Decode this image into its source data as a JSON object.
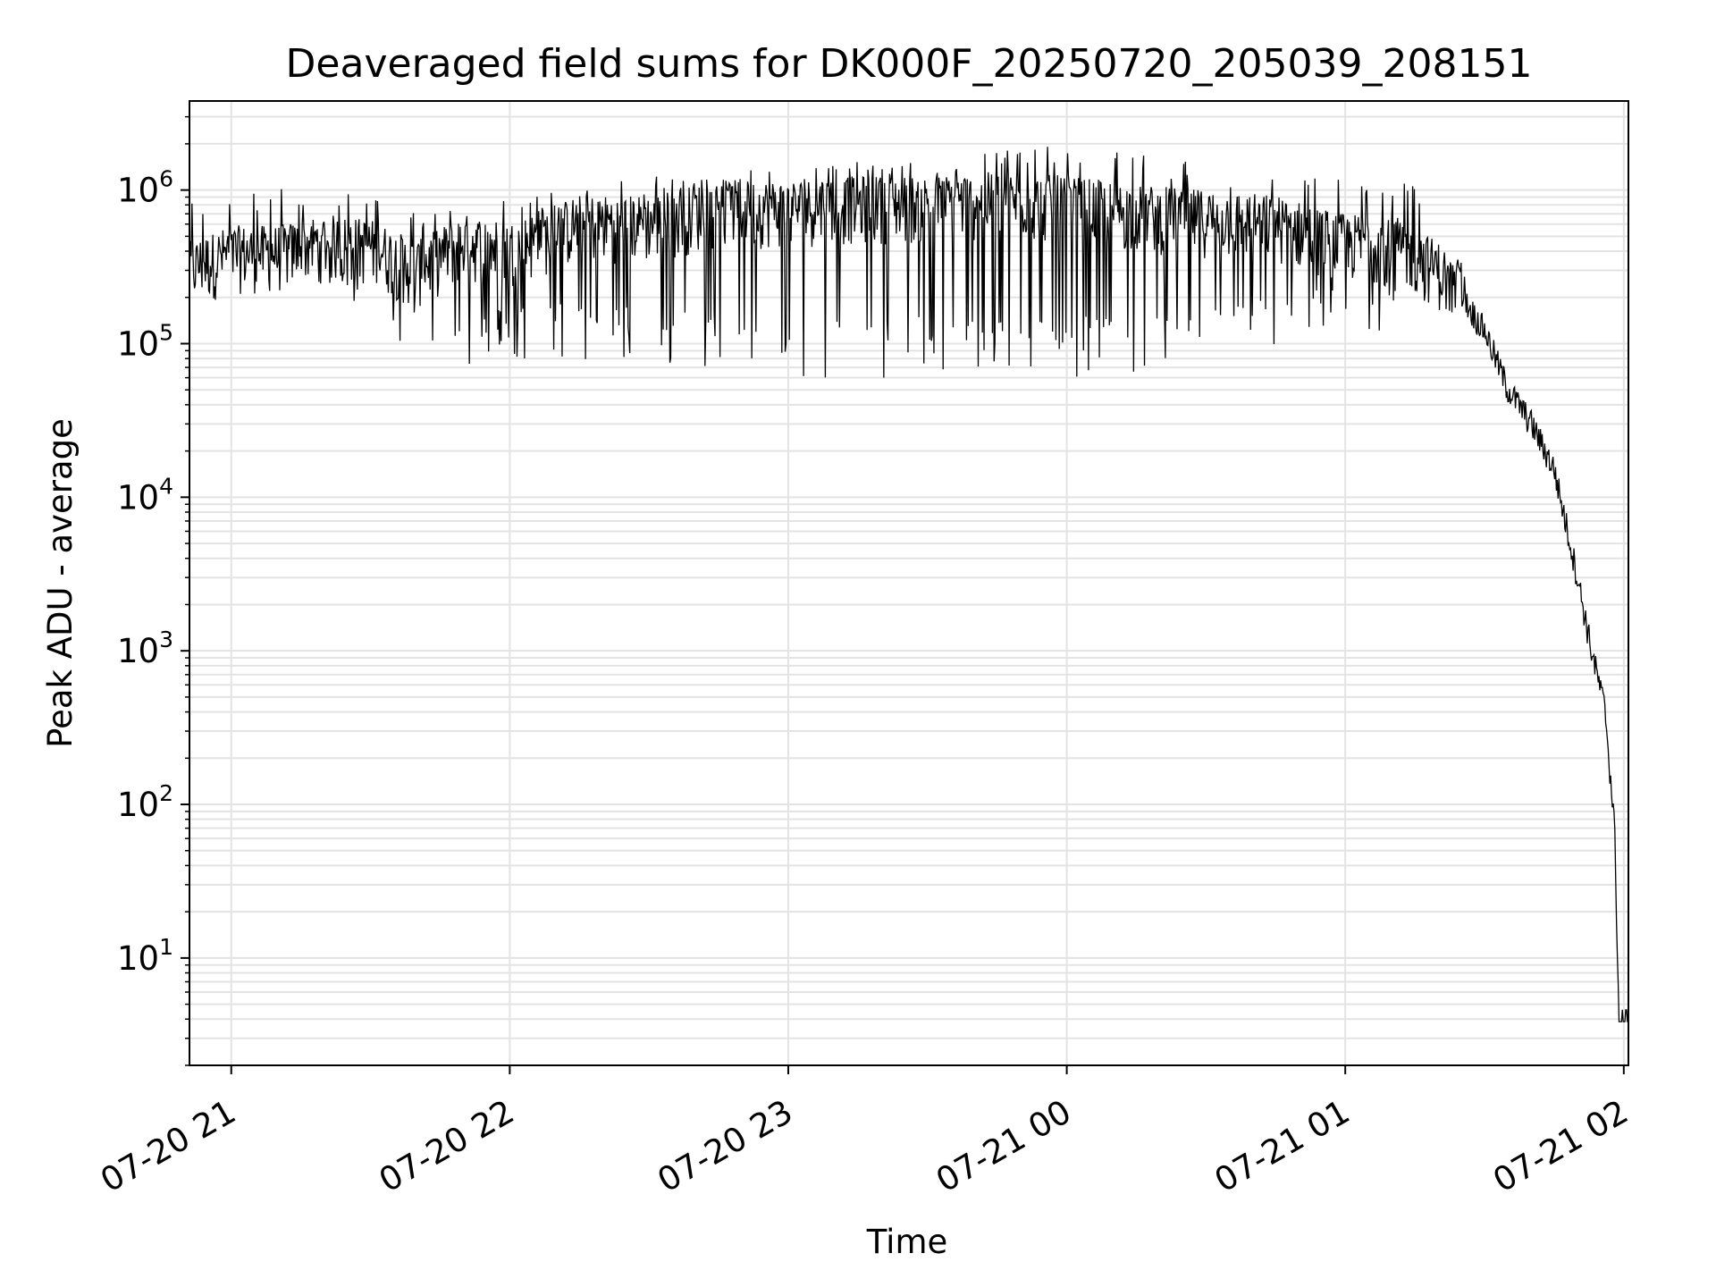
{
  "chart_data": {
    "type": "line",
    "title": "Deaveraged field sums for DK000F_20250720_205039_208151",
    "xlabel": "Time",
    "ylabel": "Peak ADU - average",
    "yscale": "log",
    "ylim": [
      2,
      3800000
    ],
    "xlim": [
      "07-20 20:51",
      "07-21 02:01"
    ],
    "grid": true,
    "colors": {
      "line": "#000000",
      "grid": "#e3e3e3",
      "frame": "#000000"
    },
    "x_ticks": [
      {
        "time": "07-20 21:00",
        "label": "07-20 21"
      },
      {
        "time": "07-20 22:00",
        "label": "07-20 22"
      },
      {
        "time": "07-20 23:00",
        "label": "07-20 23"
      },
      {
        "time": "07-21 00:00",
        "label": "07-21 00"
      },
      {
        "time": "07-21 01:00",
        "label": "07-21 01"
      },
      {
        "time": "07-21 02:00",
        "label": "07-21 02"
      }
    ],
    "y_ticks": [
      {
        "value": 10,
        "base": "10",
        "exp": "1"
      },
      {
        "value": 100,
        "base": "10",
        "exp": "2"
      },
      {
        "value": 1000,
        "base": "10",
        "exp": "3"
      },
      {
        "value": 10000,
        "base": "10",
        "exp": "4"
      },
      {
        "value": 100000,
        "base": "10",
        "exp": "5"
      },
      {
        "value": 1000000,
        "base": "10",
        "exp": "6"
      }
    ],
    "series": [
      {
        "points": [
          [
            "07-20 20:51",
            300000
          ],
          [
            "07-20 21:00",
            380000
          ],
          [
            "07-20 21:10",
            380000
          ],
          [
            "07-20 21:20",
            450000
          ],
          [
            "07-20 21:30",
            420000
          ],
          [
            "07-20 21:40",
            300000
          ],
          [
            "07-20 21:50",
            450000
          ],
          [
            "07-20 22:00",
            400000
          ],
          [
            "07-20 22:15",
            600000
          ],
          [
            "07-20 22:30",
            600000
          ],
          [
            "07-20 22:45",
            750000
          ],
          [
            "07-20 23:00",
            750000
          ],
          [
            "07-20 23:15",
            800000
          ],
          [
            "07-20 23:30",
            800000
          ],
          [
            "07-20 23:45",
            850000
          ],
          [
            "07-21 00:00",
            800000
          ],
          [
            "07-21 00:15",
            700000
          ],
          [
            "07-21 00:30",
            650000
          ],
          [
            "07-21 00:45",
            600000
          ],
          [
            "07-21 01:00",
            450000
          ],
          [
            "07-21 01:10",
            450000
          ],
          [
            "07-21 01:20",
            300000
          ],
          [
            "07-21 01:25",
            200000
          ],
          [
            "07-21 01:30",
            120000
          ],
          [
            "07-21 01:35",
            50000
          ],
          [
            "07-21 01:40",
            30000
          ],
          [
            "07-21 01:45",
            15000
          ],
          [
            "07-21 01:50",
            3000
          ],
          [
            "07-21 01:53",
            1000
          ],
          [
            "07-21 01:56",
            400
          ],
          [
            "07-21 01:58",
            70
          ],
          [
            "07-21 01:59",
            4
          ],
          [
            "07-21 02:01",
            4
          ]
        ],
        "noisy_range": [
          "07-20 20:51",
          "07-21 01:26"
        ],
        "dip_floor": [
          [
            "07-20 20:51",
            220000
          ],
          [
            "07-20 21:25",
            200000
          ],
          [
            "07-20 21:35",
            90000
          ],
          [
            "07-20 21:50",
            60000
          ],
          [
            "07-20 22:05",
            80000
          ],
          [
            "07-20 22:30",
            70000
          ],
          [
            "07-20 23:00",
            60000
          ],
          [
            "07-20 23:30",
            60000
          ],
          [
            "07-21 00:00",
            60000
          ],
          [
            "07-21 00:30",
            70000
          ],
          [
            "07-21 01:00",
            100000
          ],
          [
            "07-21 01:26",
            150000
          ]
        ],
        "spike_ceiling": [
          [
            "07-20 20:51",
            800000
          ],
          [
            "07-20 21:20",
            1100000
          ],
          [
            "07-20 21:40",
            700000
          ],
          [
            "07-20 22:00",
            900000
          ],
          [
            "07-20 22:30",
            1200000
          ],
          [
            "07-20 23:00",
            1400000
          ],
          [
            "07-20 23:30",
            1500000
          ],
          [
            "07-20 23:55",
            2000000
          ],
          [
            "07-21 00:30",
            1400000
          ],
          [
            "07-21 01:00",
            1100000
          ],
          [
            "07-21 01:26",
            1000000
          ]
        ]
      }
    ]
  }
}
